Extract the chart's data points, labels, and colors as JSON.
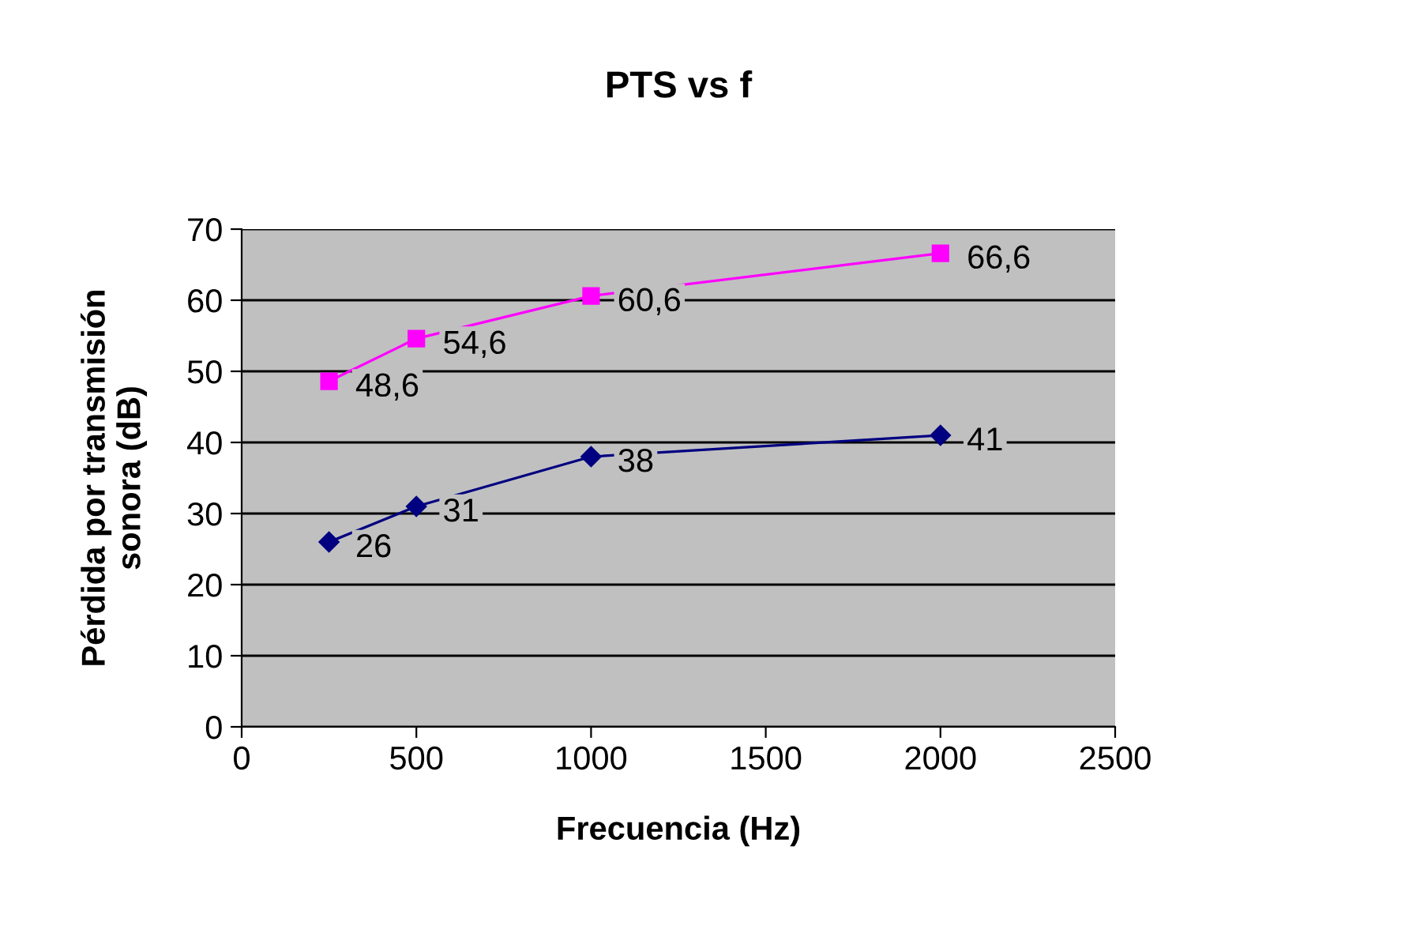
{
  "chart_data": {
    "type": "line",
    "title": "PTS vs f",
    "xlabel": "Frecuencia (Hz)",
    "ylabel": "Pérdida por transmisión\nsonora (dB)",
    "x": [
      250,
      500,
      1000,
      2000
    ],
    "series": [
      {
        "color": "#ff00ff",
        "marker": "square",
        "values": [
          48.6,
          54.6,
          60.6,
          66.6
        ],
        "value_labels": [
          "48,6",
          "54,6",
          "60,6",
          "66,6"
        ]
      },
      {
        "color": "#000080",
        "marker": "diamond",
        "values": [
          26,
          31,
          38,
          41
        ],
        "value_labels": [
          "26",
          "31",
          "38",
          "41"
        ]
      }
    ],
    "xlim": [
      0,
      2500
    ],
    "xticks": [
      0,
      500,
      1000,
      1500,
      2000,
      2500
    ],
    "ylim": [
      0,
      70
    ],
    "yticks": [
      0,
      10,
      20,
      30,
      40,
      50,
      60,
      70
    ],
    "grid": "y",
    "legend": false,
    "line_style": "solid"
  }
}
